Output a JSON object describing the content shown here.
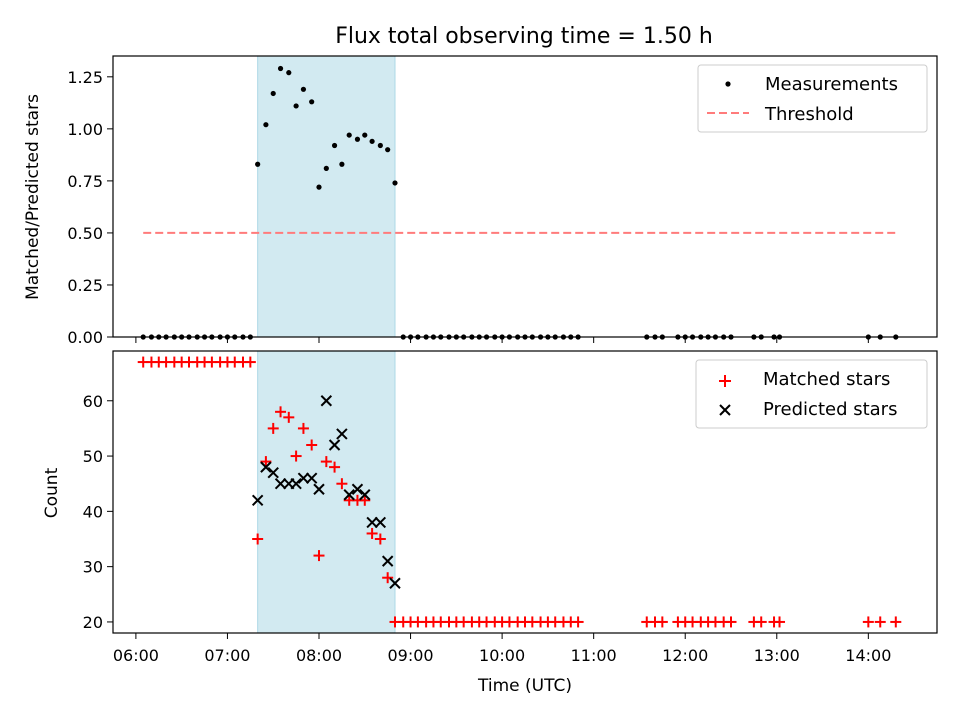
{
  "title": "Flux total observing time = 1.50 h",
  "colors": {
    "shade": "#add8e6",
    "threshold": "#ff7b7b",
    "matched": "#ff0000",
    "predicted": "#000000",
    "measure": "#000000"
  },
  "chart_data": [
    {
      "type": "scatter",
      "ylabel": "Matched/Predicted stars",
      "ylim": [
        0,
        1.35
      ],
      "yticks": [
        "0.00",
        "0.25",
        "0.50",
        "0.75",
        "1.00",
        "1.25"
      ],
      "yticks_values": [
        0,
        0.25,
        0.5,
        0.75,
        1.0,
        1.25
      ],
      "shaded_interval": [
        7.33,
        8.83
      ],
      "legend": [
        "Measurements",
        "Threshold"
      ],
      "legend_position": "top-right",
      "threshold": {
        "x": [
          6.08,
          14.33
        ],
        "y": 0.5
      },
      "measurements": {
        "x": [
          6.08,
          6.17,
          6.25,
          6.33,
          6.42,
          6.5,
          6.58,
          6.67,
          6.75,
          6.83,
          6.92,
          7.0,
          7.08,
          7.17,
          7.25,
          7.33,
          7.42,
          7.5,
          7.58,
          7.67,
          7.75,
          7.83,
          7.92,
          8.0,
          8.08,
          8.17,
          8.25,
          8.33,
          8.42,
          8.5,
          8.58,
          8.67,
          8.75,
          8.83,
          8.92,
          9.0,
          9.08,
          9.17,
          9.25,
          9.33,
          9.42,
          9.5,
          9.58,
          9.67,
          9.75,
          9.83,
          9.92,
          10.0,
          10.08,
          10.17,
          10.25,
          10.33,
          10.42,
          10.5,
          10.58,
          10.67,
          10.75,
          10.83,
          11.58,
          11.67,
          11.75,
          11.92,
          12.0,
          12.08,
          12.17,
          12.25,
          12.33,
          12.42,
          12.5,
          12.75,
          12.83,
          12.97,
          13.03,
          14.0,
          14.13,
          14.3
        ],
        "y": [
          0,
          0,
          0,
          0,
          0,
          0,
          0,
          0,
          0,
          0,
          0,
          0,
          0,
          0,
          0,
          0.83,
          1.02,
          1.17,
          1.29,
          1.27,
          1.11,
          1.19,
          1.13,
          0.72,
          0.81,
          0.92,
          0.83,
          0.97,
          0.95,
          0.97,
          0.94,
          0.92,
          0.9,
          0.74,
          0,
          0,
          0,
          0,
          0,
          0,
          0,
          0,
          0,
          0,
          0,
          0,
          0,
          0,
          0,
          0,
          0,
          0,
          0,
          0,
          0,
          0,
          0,
          0,
          0,
          0,
          0,
          0,
          0,
          0,
          0,
          0,
          0,
          0,
          0,
          0,
          0,
          0,
          0,
          0,
          0,
          0
        ]
      }
    },
    {
      "type": "scatter",
      "xlabel": "Time (UTC)",
      "ylabel": "Count",
      "ylim": [
        18,
        69
      ],
      "yticks": [
        "20",
        "30",
        "40",
        "50",
        "60"
      ],
      "yticks_values": [
        20,
        30,
        40,
        50,
        60
      ],
      "xlim": [
        5.75,
        14.75
      ],
      "xticks": [
        "06:00",
        "07:00",
        "08:00",
        "09:00",
        "10:00",
        "11:00",
        "12:00",
        "13:00",
        "14:00"
      ],
      "xticks_values": [
        6,
        7,
        8,
        9,
        10,
        11,
        12,
        13,
        14
      ],
      "shaded_interval": [
        7.33,
        8.83
      ],
      "legend": [
        "Matched stars",
        "Predicted stars"
      ],
      "legend_position": "top-right",
      "series": [
        {
          "name": "Matched stars",
          "x": [
            6.08,
            6.17,
            6.25,
            6.33,
            6.42,
            6.5,
            6.58,
            6.67,
            6.75,
            6.83,
            6.92,
            7.0,
            7.08,
            7.17,
            7.25,
            7.33,
            7.42,
            7.5,
            7.58,
            7.67,
            7.75,
            7.83,
            7.92,
            8.0,
            8.08,
            8.17,
            8.25,
            8.33,
            8.42,
            8.5,
            8.58,
            8.67,
            8.75,
            8.83,
            8.92,
            9.0,
            9.08,
            9.17,
            9.25,
            9.33,
            9.42,
            9.5,
            9.58,
            9.67,
            9.75,
            9.83,
            9.92,
            10.0,
            10.08,
            10.17,
            10.25,
            10.33,
            10.42,
            10.5,
            10.58,
            10.67,
            10.75,
            10.83,
            11.58,
            11.67,
            11.75,
            11.92,
            12.0,
            12.08,
            12.17,
            12.25,
            12.33,
            12.42,
            12.5,
            12.75,
            12.83,
            12.97,
            13.03,
            14.0,
            14.13,
            14.3
          ],
          "y": [
            67,
            67,
            67,
            67,
            67,
            67,
            67,
            67,
            67,
            67,
            67,
            67,
            67,
            67,
            67,
            35,
            49,
            55,
            58,
            57,
            50,
            55,
            52,
            32,
            49,
            48,
            45,
            42,
            42,
            42,
            36,
            35,
            28,
            20,
            20,
            20,
            20,
            20,
            20,
            20,
            20,
            20,
            20,
            20,
            20,
            20,
            20,
            20,
            20,
            20,
            20,
            20,
            20,
            20,
            20,
            20,
            20,
            20,
            20,
            20,
            20,
            20,
            20,
            20,
            20,
            20,
            20,
            20,
            20,
            20,
            20,
            20,
            20,
            20,
            20,
            20
          ]
        },
        {
          "name": "Predicted stars",
          "x": [
            7.33,
            7.42,
            7.5,
            7.58,
            7.67,
            7.75,
            7.83,
            7.92,
            8.0,
            8.08,
            8.17,
            8.25,
            8.33,
            8.42,
            8.5,
            8.58,
            8.67,
            8.75,
            8.83
          ],
          "y": [
            42,
            48,
            47,
            45,
            45,
            45,
            46,
            46,
            44,
            60,
            52,
            54,
            43,
            44,
            43,
            38,
            38,
            31,
            27
          ]
        }
      ]
    }
  ]
}
